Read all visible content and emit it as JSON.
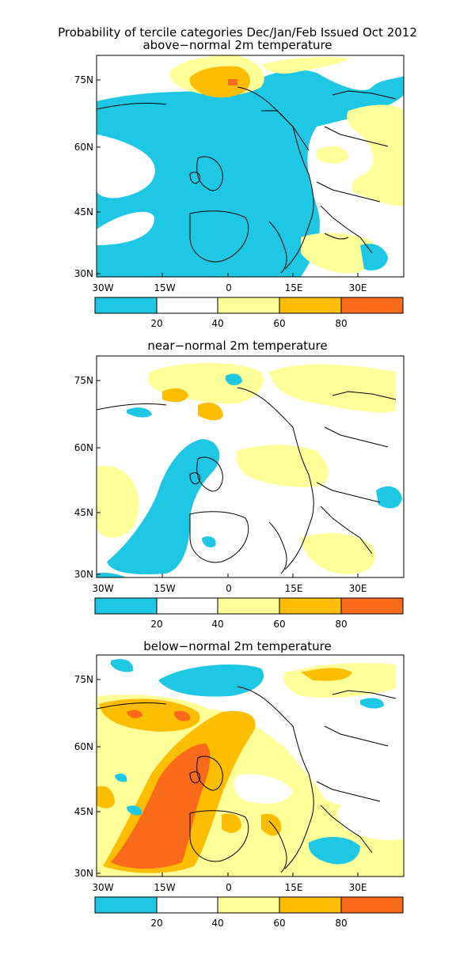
{
  "title_line1": "Probability of tercile categories Dec/Jan/Feb Issued Oct 2012",
  "panels": [
    {
      "name": "above",
      "subtitle": "above−normal 2m temperature"
    },
    {
      "name": "near",
      "subtitle": "near−normal 2m temperature"
    },
    {
      "name": "below",
      "subtitle": "below−normal 2m temperature"
    }
  ],
  "lat_labels": [
    "75N",
    "60N",
    "45N",
    "30N"
  ],
  "lon_labels": [
    "30W",
    "15W",
    "0",
    "15E",
    "30E"
  ],
  "colorbar": {
    "colors": [
      "#1ec8e4",
      "#ffffff",
      "#ffff9a",
      "#fdbd00",
      "#fa6a1b"
    ],
    "labels": [
      "20",
      "40",
      "60",
      "80"
    ]
  }
}
